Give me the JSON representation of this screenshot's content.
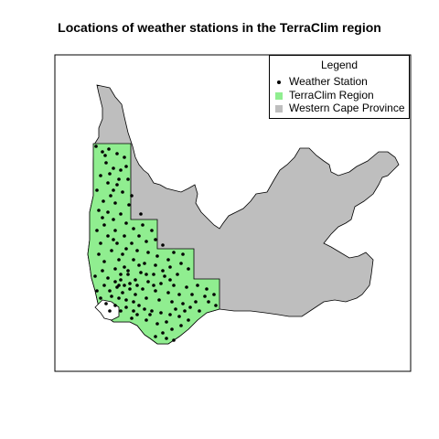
{
  "title": "Locations of weather stations in the TerraClim region",
  "legend": {
    "title": "Legend",
    "items": [
      {
        "label": "Weather Station",
        "symbol": "point",
        "color": "#000000"
      },
      {
        "label": "TerraClim Region",
        "symbol": "square",
        "color": "#90ee90"
      },
      {
        "label": "Western Cape Province",
        "symbol": "square",
        "color": "#bebebe"
      }
    ]
  },
  "colors": {
    "province_fill": "#bebebe",
    "terraclim_fill": "#90ee90",
    "station": "#000000",
    "border": "#000000"
  },
  "chart_data": {
    "type": "scatter",
    "title": "Locations of weather stations in the TerraClim region",
    "series": [
      {
        "name": "Weather Station",
        "marker": "point",
        "color": "#000000"
      }
    ]
  }
}
